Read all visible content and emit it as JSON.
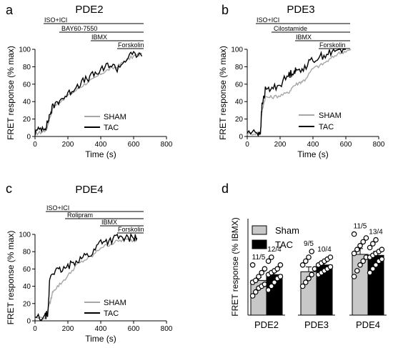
{
  "panels": [
    {
      "letter": "a",
      "title": "PDE2",
      "drugs": [
        "ISO+ICI",
        "BAY60-7550",
        "IBMX",
        "Forskolin"
      ],
      "legend": [
        "SHAM",
        "TAC"
      ]
    },
    {
      "letter": "b",
      "title": "PDE3",
      "drugs": [
        "ISO+ICI",
        "Cilostamide",
        "IBMX",
        "Forskolin"
      ],
      "legend": [
        "SHAM",
        "TAC"
      ]
    },
    {
      "letter": "c",
      "title": "PDE4",
      "drugs": [
        "ISO+ICI",
        "Rolipram",
        "IBMX",
        "Forskolin"
      ],
      "legend": [
        "SHAM",
        "TAC"
      ]
    },
    {
      "letter": "d",
      "legend": [
        "Sham",
        "TAC"
      ]
    }
  ],
  "chart_data": [
    {
      "type": "line",
      "title": "PDE2",
      "xlabel": "Time (s)",
      "ylabel": "FRET response (% max)",
      "xlim": [
        0,
        800
      ],
      "ylim": [
        0,
        100
      ],
      "xticks": [
        0,
        200,
        400,
        600,
        800
      ],
      "yticks": [
        0,
        20,
        40,
        60,
        80,
        100
      ],
      "series": [
        {
          "name": "SHAM",
          "color": "#a6a6a6",
          "x": [
            0,
            40,
            70,
            90,
            110,
            150,
            200,
            250,
            300,
            350,
            400,
            450,
            500,
            550,
            600,
            650
          ],
          "y": [
            3,
            5,
            8,
            22,
            33,
            40,
            47,
            53,
            60,
            65,
            72,
            77,
            80,
            87,
            92,
            95
          ]
        },
        {
          "name": "TAC",
          "color": "#000000",
          "x": [
            0,
            40,
            70,
            90,
            110,
            150,
            200,
            250,
            300,
            350,
            400,
            450,
            500,
            550,
            600,
            650
          ],
          "y": [
            4,
            10,
            12,
            25,
            35,
            42,
            48,
            58,
            64,
            70,
            75,
            83,
            78,
            88,
            95,
            92
          ]
        }
      ]
    },
    {
      "type": "line",
      "title": "PDE3",
      "xlabel": "Time (s)",
      "ylabel": "FRET response (% max)",
      "xlim": [
        0,
        800
      ],
      "ylim": [
        0,
        100
      ],
      "xticks": [
        0,
        200,
        400,
        600,
        800
      ],
      "yticks": [
        0,
        20,
        40,
        60,
        80,
        100
      ],
      "series": [
        {
          "name": "SHAM",
          "color": "#a6a6a6",
          "x": [
            0,
            60,
            80,
            90,
            110,
            150,
            200,
            250,
            280,
            320,
            350,
            400,
            450,
            500,
            550,
            600,
            630
          ],
          "y": [
            3,
            4,
            5,
            30,
            45,
            45,
            47,
            50,
            58,
            62,
            65,
            78,
            82,
            88,
            95,
            98,
            99
          ]
        },
        {
          "name": "TAC",
          "color": "#000000",
          "x": [
            0,
            60,
            80,
            90,
            110,
            150,
            200,
            250,
            280,
            300,
            350,
            400,
            450,
            500,
            550,
            600
          ],
          "y": [
            5,
            4,
            5,
            35,
            53,
            55,
            60,
            70,
            75,
            75,
            80,
            88,
            92,
            96,
            99,
            100
          ]
        }
      ]
    },
    {
      "type": "line",
      "title": "PDE4",
      "xlabel": "Time (s)",
      "ylabel": "FRET response (% max)",
      "xlim": [
        0,
        800
      ],
      "ylim": [
        0,
        100
      ],
      "xticks": [
        0,
        200,
        400,
        600,
        800
      ],
      "yticks": [
        0,
        20,
        40,
        60,
        80,
        100
      ],
      "series": [
        {
          "name": "SHAM",
          "color": "#a6a6a6",
          "x": [
            0,
            60,
            90,
            110,
            150,
            200,
            250,
            300,
            350,
            400,
            450,
            500,
            550,
            600,
            620
          ],
          "y": [
            3,
            4,
            20,
            35,
            42,
            52,
            64,
            70,
            75,
            85,
            88,
            92,
            94,
            93,
            95
          ]
        },
        {
          "name": "TAC",
          "color": "#000000",
          "x": [
            0,
            60,
            80,
            90,
            110,
            150,
            200,
            250,
            300,
            350,
            400,
            450,
            500,
            550,
            600,
            620
          ],
          "y": [
            3,
            4,
            10,
            50,
            57,
            58,
            62,
            70,
            75,
            78,
            93,
            92,
            97,
            95,
            97,
            96
          ]
        }
      ]
    },
    {
      "type": "bar",
      "xlabel": "",
      "ylabel": "FRET response (% IBMX)",
      "ylim": [
        0,
        100
      ],
      "categories": [
        "PDE2",
        "PDE3",
        "PDE4"
      ],
      "series": [
        {
          "name": "Sham",
          "color": "#c8c8c8",
          "values": [
            36,
            45,
            63
          ],
          "errors": [
            3,
            5,
            6
          ],
          "labels": [
            "11/5",
            "9/5",
            "11/5"
          ],
          "points": [
            [
              20,
              24,
              28,
              30,
              32,
              34,
              36,
              40,
              44,
              48,
              52
            ],
            [
              30,
              34,
              38,
              42,
              48,
              52,
              56,
              60,
              66
            ],
            [
              40,
              46,
              52,
              56,
              60,
              64,
              68,
              72,
              76,
              80,
              84
            ]
          ]
        },
        {
          "name": "TAC",
          "color": "#000000",
          "values": [
            42,
            52,
            62
          ],
          "errors": [
            3,
            3,
            4
          ],
          "labels": [
            "12/4",
            "10/4",
            "13/4"
          ],
          "points": [
            [
              26,
              30,
              34,
              38,
              40,
              42,
              44,
              46,
              48,
              52,
              56,
              60
            ],
            [
              42,
              44,
              46,
              48,
              50,
              52,
              54,
              56,
              58,
              60
            ],
            [
              44,
              48,
              52,
              56,
              58,
              60,
              62,
              64,
              66,
              68,
              70,
              74,
              78
            ]
          ]
        }
      ]
    }
  ]
}
